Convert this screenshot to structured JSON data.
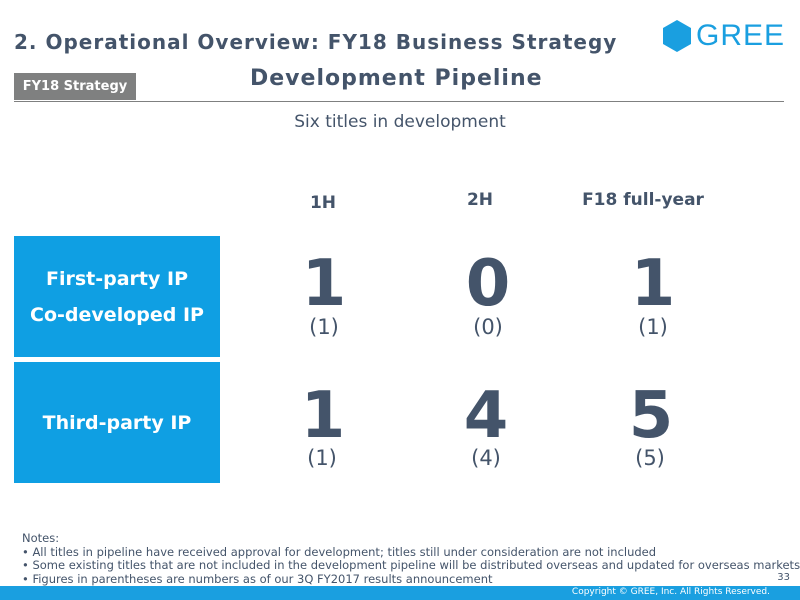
{
  "header": {
    "title": "2. Operational Overview: FY18 Business Strategy",
    "logo_text": "GREE"
  },
  "slide": {
    "tag": "FY18 Strategy",
    "section_title": "Development Pipeline",
    "subtitle": "Six titles in development"
  },
  "columns": [
    "1H",
    "2H",
    "F18 full-year"
  ],
  "rows": [
    {
      "label_line1": "First-party IP",
      "label_line2": "Co-developed IP",
      "values": [
        "1",
        "0",
        "1"
      ],
      "prior": [
        "(1)",
        "(0)",
        "(1)"
      ]
    },
    {
      "label_line1": "Third-party IP",
      "values": [
        "1",
        "4",
        "5"
      ],
      "prior": [
        "(1)",
        "(4)",
        "(5)"
      ]
    }
  ],
  "notes": {
    "heading": "Notes:",
    "items": [
      "• All titles in pipeline have received approval for development; titles still under consideration are not included",
      "• Some existing titles that are not included in the development pipeline will be distributed overseas and updated for overseas markets",
      "• Figures in parentheses are numbers as of our 3Q FY2017 results announcement"
    ]
  },
  "footer": {
    "page_number": "33",
    "copyright": "Copyright © GREE, Inc. All Rights Reserved."
  },
  "colors": {
    "brand": "#1a9fe0",
    "box": "#0f9fe3",
    "text": "#44546a",
    "tag": "#7f8080"
  }
}
